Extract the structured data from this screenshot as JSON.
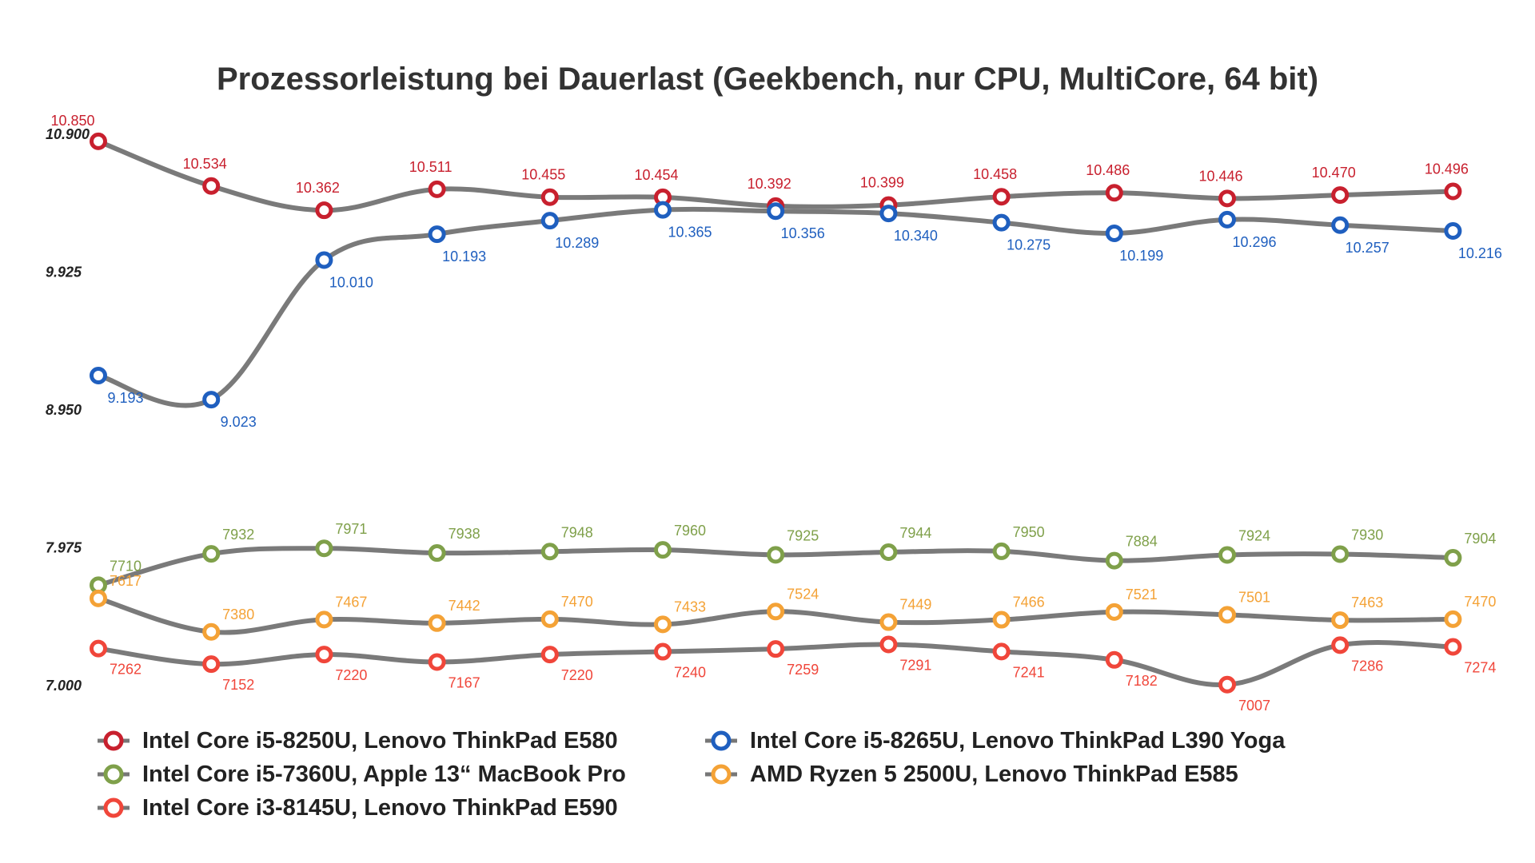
{
  "chart_data": {
    "type": "line",
    "title": "Prozessorleistung bei Dauerlast (Geekbench, nur CPU, MultiCore, 64 bit)",
    "xlabel": "",
    "ylabel": "",
    "y_tick_labels": [
      "10.900",
      "9.925",
      "8.950",
      "7.975",
      "7.000"
    ],
    "ylim": [
      7000,
      10900
    ],
    "grid": false,
    "legend_position": "bottom",
    "series": [
      {
        "name": "Intel Core i5-8250U, Lenovo ThinkPad E580",
        "color": "#c8202e",
        "values": [
          10850,
          10534,
          10362,
          10511,
          10455,
          10454,
          10392,
          10399,
          10458,
          10486,
          10446,
          10470,
          10496
        ],
        "labels": [
          "10.850",
          "10.534",
          "10.362",
          "10.511",
          "10.455",
          "10.454",
          "10.392",
          "10.399",
          "10.458",
          "10.486",
          "10.446",
          "10.470",
          "10.496"
        ]
      },
      {
        "name": "Intel Core i5-8265U, Lenovo ThinkPad L390 Yoga",
        "color": "#1f5fbf",
        "values": [
          9193,
          9023,
          10010,
          10193,
          10289,
          10365,
          10356,
          10340,
          10275,
          10199,
          10296,
          10257,
          10216
        ],
        "labels": [
          "9.193",
          "9.023",
          "10.010",
          "10.193",
          "10.289",
          "10.365",
          "10.356",
          "10.340",
          "10.275",
          "10.199",
          "10.296",
          "10.257",
          "10.216"
        ]
      },
      {
        "name": "Intel Core i5-7360U, Apple 13“ MacBook Pro",
        "color": "#7fa04a",
        "values": [
          7710,
          7932,
          7971,
          7938,
          7948,
          7960,
          7925,
          7944,
          7950,
          7884,
          7924,
          7930,
          7904
        ],
        "labels": [
          "7710",
          "7932",
          "7971",
          "7938",
          "7948",
          "7960",
          "7925",
          "7944",
          "7950",
          "7884",
          "7924",
          "7930",
          "7904"
        ]
      },
      {
        "name": "AMD Ryzen 5 2500U, Lenovo ThinkPad E585",
        "color": "#f4a236",
        "values": [
          7617,
          7380,
          7467,
          7442,
          7470,
          7433,
          7524,
          7449,
          7466,
          7521,
          7501,
          7463,
          7470
        ],
        "labels": [
          "7617",
          "7380",
          "7467",
          "7442",
          "7470",
          "7433",
          "7524",
          "7449",
          "7466",
          "7521",
          "7501",
          "7463",
          "7470"
        ]
      },
      {
        "name": "Intel Core i3-8145U, Lenovo ThinkPad E590",
        "color": "#f0463a",
        "values": [
          7262,
          7152,
          7220,
          7167,
          7220,
          7240,
          7259,
          7291,
          7241,
          7182,
          7007,
          7286,
          7274
        ],
        "labels": [
          "7262",
          "7152",
          "7220",
          "7167",
          "7220",
          "7240",
          "7259",
          "7291",
          "7241",
          "7182",
          "7007",
          "7286",
          "7274"
        ]
      }
    ]
  },
  "legend": {
    "items": [
      {
        "label": "Intel Core i5-8250U, Lenovo ThinkPad E580",
        "color": "#c8202e"
      },
      {
        "label": "Intel Core i5-8265U, Lenovo ThinkPad L390 Yoga",
        "color": "#1f5fbf"
      },
      {
        "label": "Intel Core i5-7360U, Apple 13“ MacBook Pro",
        "color": "#7fa04a"
      },
      {
        "label": "AMD Ryzen 5 2500U, Lenovo ThinkPad E585",
        "color": "#f4a236"
      },
      {
        "label": "Intel Core i3-8145U, Lenovo ThinkPad E590",
        "color": "#f0463a"
      }
    ]
  }
}
